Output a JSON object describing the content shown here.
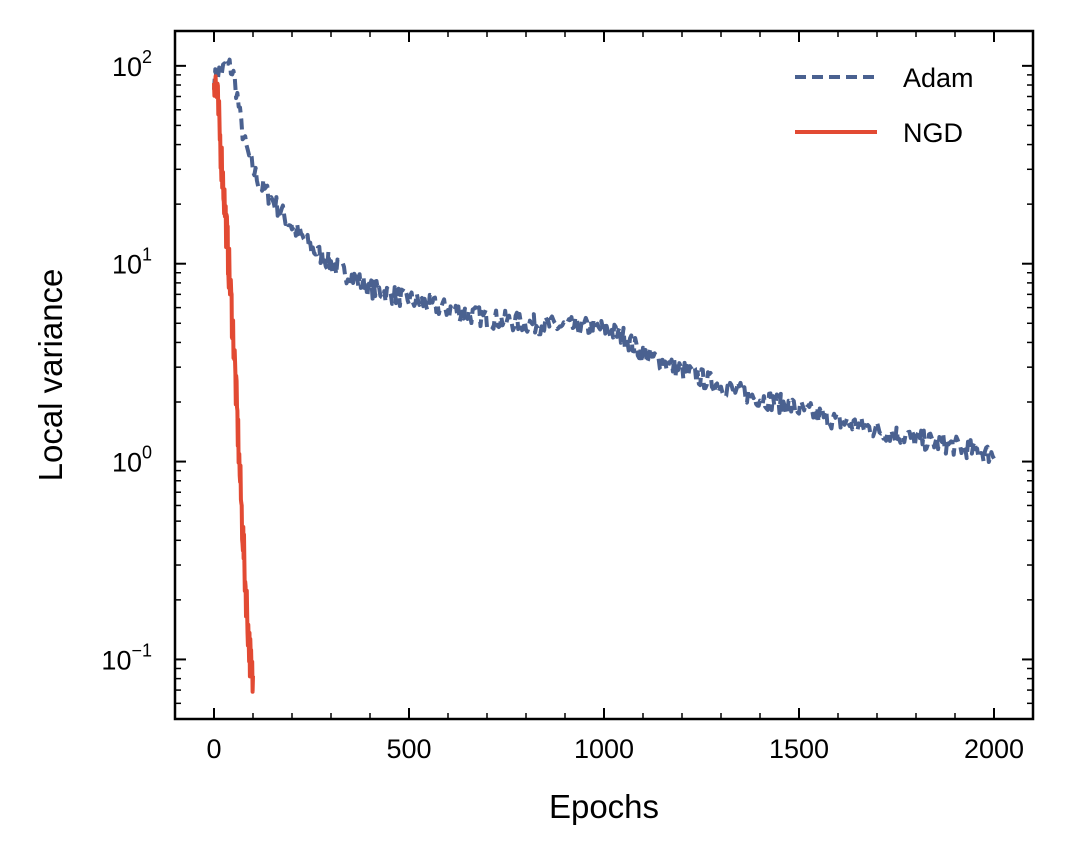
{
  "chart_data": {
    "type": "line",
    "title": "",
    "xlabel": "Epochs",
    "ylabel": "Local variance",
    "xscale": "linear",
    "yscale": "log",
    "xlim": [
      -100,
      2100
    ],
    "ylim": [
      0.05,
      150
    ],
    "grid": false,
    "legend_position": "top-right",
    "xticks": [
      0,
      500,
      1000,
      1500,
      2000
    ],
    "xtick_labels": [
      "0",
      "500",
      "1000",
      "1500",
      "2000"
    ],
    "yticks": [
      0.1,
      1,
      10,
      100
    ],
    "ytick_labels": [
      {
        "base": "10",
        "exp": "−1"
      },
      {
        "base": "10",
        "exp": "0"
      },
      {
        "base": "10",
        "exp": "1"
      },
      {
        "base": "10",
        "exp": "2"
      }
    ],
    "series": [
      {
        "name": "Adam",
        "color": "#4a6190",
        "style": "dashed",
        "x": [
          0,
          10,
          20,
          30,
          40,
          50,
          60,
          70,
          80,
          100,
          120,
          150,
          200,
          250,
          300,
          400,
          500,
          600,
          700,
          800,
          900,
          950,
          1000,
          1050,
          1100,
          1200,
          1300,
          1400,
          1500,
          1600,
          1700,
          1800,
          1900,
          2000
        ],
        "values": [
          85,
          92,
          95,
          98,
          100,
          90,
          70,
          50,
          40,
          30,
          25,
          21,
          15.5,
          12,
          10,
          7.5,
          6.6,
          5.9,
          5.3,
          5.0,
          4.8,
          4.8,
          4.7,
          4.3,
          3.5,
          2.9,
          2.4,
          2.1,
          1.85,
          1.6,
          1.45,
          1.3,
          1.2,
          1.08
        ],
        "noise": 0.05
      },
      {
        "name": "NGD",
        "color": "#e24a33",
        "style": "solid",
        "x": [
          0,
          5,
          10,
          20,
          30,
          40,
          50,
          60,
          70,
          80,
          90,
          95,
          100
        ],
        "values": [
          92,
          80,
          62,
          32,
          17,
          8.5,
          4.2,
          1.6,
          0.6,
          0.25,
          0.12,
          0.09,
          0.075
        ],
        "noise": 0.12
      }
    ]
  }
}
